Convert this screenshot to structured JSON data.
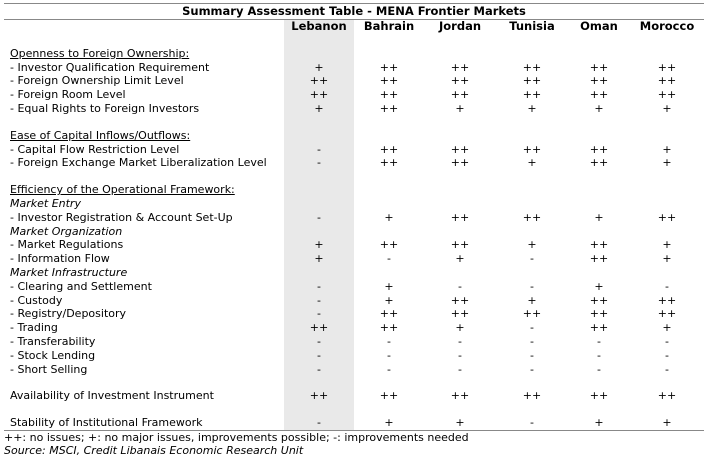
{
  "title": "Summary Assessment Table - MENA Frontier Markets",
  "columns": [
    "Lebanon",
    "Bahrain",
    "Jordan",
    "Tunisia",
    "Oman",
    "Morocco"
  ],
  "sections": [
    {
      "heading": "Openness to Foreign Ownership:",
      "rows": [
        {
          "type": "row",
          "label": "- Investor Qualification Requirement",
          "values": [
            "+",
            "++",
            "++",
            "++",
            "++",
            "++"
          ]
        },
        {
          "type": "row",
          "label": "- Foreign Ownership Limit Level",
          "values": [
            "++",
            "++",
            "++",
            "++",
            "++",
            "++"
          ]
        },
        {
          "type": "row",
          "label": "- Foreign Room Level",
          "values": [
            "++",
            "++",
            "++",
            "++",
            "++",
            "++"
          ]
        },
        {
          "type": "row",
          "label": "- Equal Rights to Foreign Investors",
          "values": [
            "+",
            "++",
            "+",
            "+",
            "+",
            "+"
          ]
        }
      ]
    },
    {
      "heading": "Ease of Capital Inflows/Outflows:",
      "rows": [
        {
          "type": "row",
          "label": "- Capital Flow Restriction Level",
          "values": [
            "-",
            "++",
            "++",
            "++",
            "++",
            "+"
          ]
        },
        {
          "type": "row",
          "label": "- Foreign Exchange Market Liberalization Level",
          "values": [
            "-",
            "++",
            "++",
            "+",
            "++",
            "+"
          ]
        }
      ]
    },
    {
      "heading": "Efficiency of the Operational Framework:",
      "rows": [
        {
          "type": "sub",
          "label": "Market Entry"
        },
        {
          "type": "row",
          "label": "- Investor Registration & Account Set-Up",
          "values": [
            "-",
            "+",
            "++",
            "++",
            "+",
            "++"
          ]
        },
        {
          "type": "sub",
          "label": "Market Organization"
        },
        {
          "type": "row",
          "label": "- Market Regulations",
          "values": [
            "+",
            "++",
            "++",
            "+",
            "++",
            "+"
          ]
        },
        {
          "type": "row",
          "label": "- Information Flow",
          "values": [
            "+",
            "-",
            "+",
            "-",
            "++",
            "+"
          ]
        },
        {
          "type": "sub",
          "label": "Market Infrastructure"
        },
        {
          "type": "row",
          "label": "- Clearing and Settlement",
          "values": [
            "-",
            "+",
            "-",
            "-",
            "+",
            "-"
          ]
        },
        {
          "type": "row",
          "label": "- Custody",
          "values": [
            "-",
            "+",
            "++",
            "+",
            "++",
            "++"
          ]
        },
        {
          "type": "row",
          "label": "- Registry/Depository",
          "values": [
            "-",
            "++",
            "++",
            "++",
            "++",
            "++"
          ]
        },
        {
          "type": "row",
          "label": "- Trading",
          "values": [
            "++",
            "++",
            "+",
            "-",
            "++",
            "+"
          ]
        },
        {
          "type": "row",
          "label": "- Transferability",
          "values": [
            "-",
            "-",
            "-",
            "-",
            "-",
            "-"
          ]
        },
        {
          "type": "row",
          "label": "- Stock Lending",
          "values": [
            "-",
            "-",
            "-",
            "-",
            "-",
            "-"
          ]
        },
        {
          "type": "row",
          "label": "- Short Selling",
          "values": [
            "-",
            "-",
            "-",
            "-",
            "-",
            "-"
          ]
        }
      ]
    },
    {
      "heading": "",
      "rows": [
        {
          "type": "row",
          "label": "Availability of Investment Instrument",
          "values": [
            "++",
            "++",
            "++",
            "++",
            "++",
            "++"
          ]
        }
      ]
    },
    {
      "heading": "",
      "rows": [
        {
          "type": "row",
          "label": "Stability of Institutional Framework",
          "values": [
            "-",
            "+",
            "+",
            "-",
            "+",
            "+"
          ]
        }
      ]
    }
  ],
  "legend": "++: no issues; +: no major issues, improvements possible; -: improvements needed",
  "source": "Source: MSCI, Credit Libanais Economic Research Unit",
  "colors": {
    "highlight_column": "#e9e9e9",
    "rule": "#888888"
  }
}
